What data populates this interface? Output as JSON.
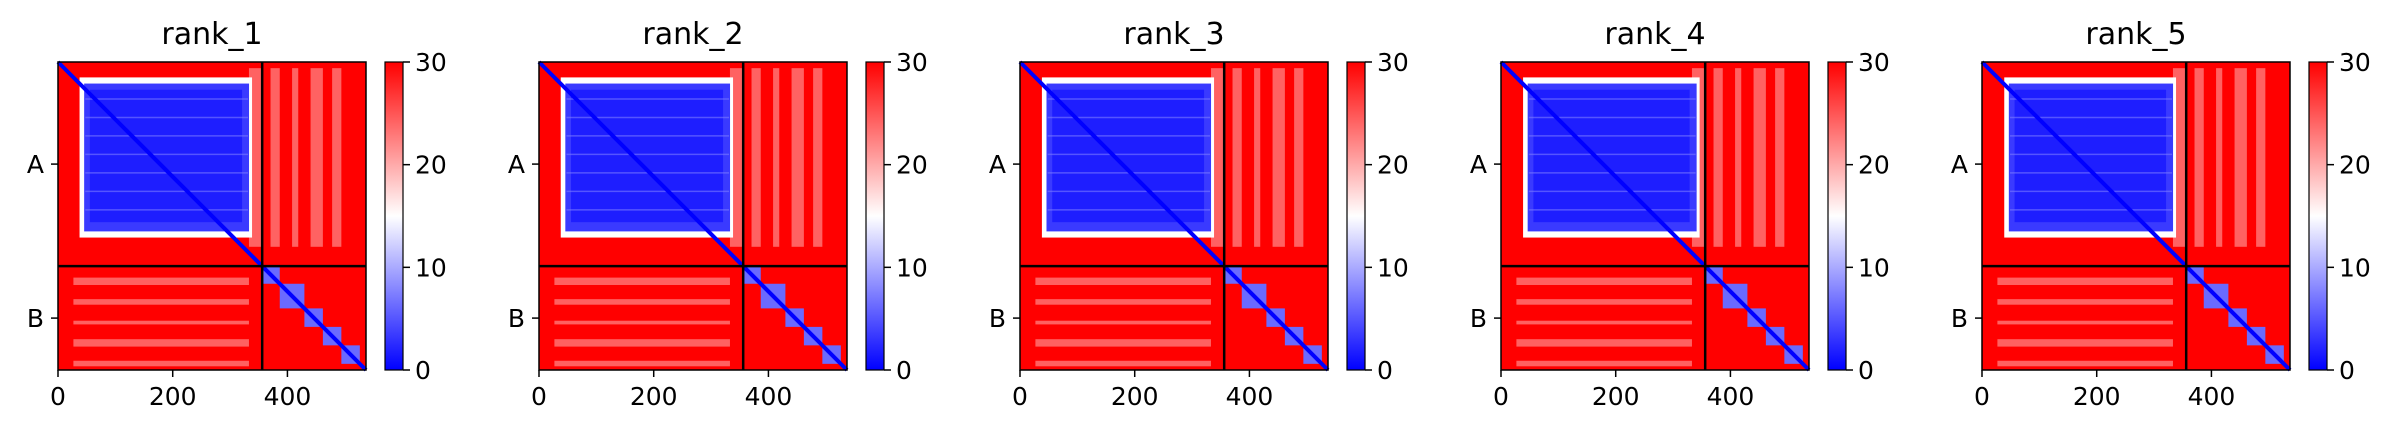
{
  "chart_data": [
    {
      "type": "heatmap",
      "title": "rank_1",
      "xlim": [
        0,
        537
      ],
      "xticks": [
        0,
        200,
        400
      ],
      "chain_labels": [
        "A",
        "B"
      ],
      "chain_boundary": 356,
      "colorbar": {
        "ticks": [
          0,
          10,
          20,
          30
        ],
        "range": [
          0,
          30
        ],
        "colormap": "bwr"
      }
    },
    {
      "type": "heatmap",
      "title": "rank_2",
      "xlim": [
        0,
        537
      ],
      "xticks": [
        0,
        200,
        400
      ],
      "chain_labels": [
        "A",
        "B"
      ],
      "chain_boundary": 356,
      "colorbar": {
        "ticks": [
          0,
          10,
          20,
          30
        ],
        "range": [
          0,
          30
        ],
        "colormap": "bwr"
      }
    },
    {
      "type": "heatmap",
      "title": "rank_3",
      "xlim": [
        0,
        537
      ],
      "xticks": [
        0,
        200,
        400
      ],
      "chain_labels": [
        "A",
        "B"
      ],
      "chain_boundary": 356,
      "colorbar": {
        "ticks": [
          0,
          10,
          20,
          30
        ],
        "range": [
          0,
          30
        ],
        "colormap": "bwr"
      }
    },
    {
      "type": "heatmap",
      "title": "rank_4",
      "xlim": [
        0,
        537
      ],
      "xticks": [
        0,
        200,
        400
      ],
      "chain_labels": [
        "A",
        "B"
      ],
      "chain_boundary": 356,
      "colorbar": {
        "ticks": [
          0,
          10,
          20,
          30
        ],
        "range": [
          0,
          30
        ],
        "colormap": "bwr"
      }
    },
    {
      "type": "heatmap",
      "title": "rank_5",
      "xlim": [
        0,
        537
      ],
      "xticks": [
        0,
        200,
        400
      ],
      "chain_labels": [
        "A",
        "B"
      ],
      "chain_boundary": 356,
      "colorbar": {
        "ticks": [
          0,
          10,
          20,
          30
        ],
        "range": [
          0,
          30
        ],
        "colormap": "bwr"
      }
    }
  ],
  "colors": {
    "low": "#0000ff",
    "mid": "#ffffff",
    "high": "#ff0000",
    "divider": "#000000"
  }
}
